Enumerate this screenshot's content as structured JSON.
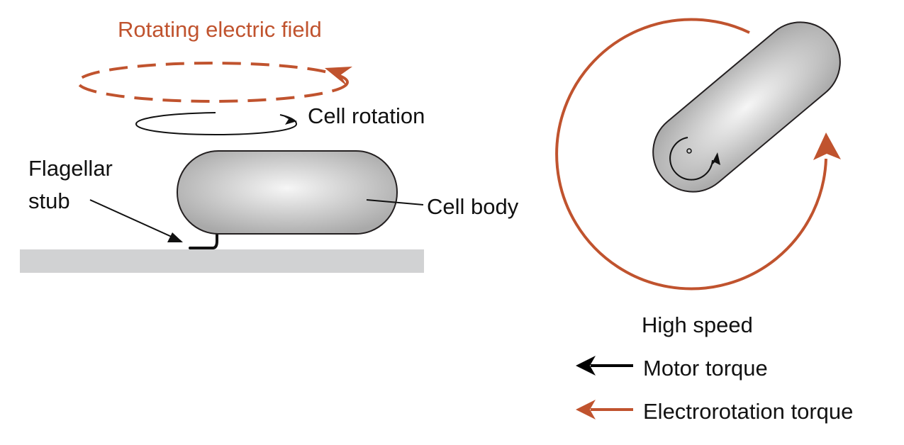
{
  "labels": {
    "field_title": "Rotating electric field",
    "cell_rotation": "Cell rotation",
    "flagellar_stub_line1": "Flagellar",
    "flagellar_stub_line2": "stub",
    "cell_body": "Cell body",
    "high_speed": "High speed"
  },
  "legend": [
    {
      "label": "Motor torque",
      "color": "#000000"
    },
    {
      "label": "Electrorotation torque",
      "color": "#c0532e"
    }
  ],
  "colors": {
    "field": "#c0532e",
    "cell_fill_light": "#f6f6f6",
    "cell_fill_dark": "#a9a9a9",
    "surface": "#d1d2d3",
    "stroke": "#231f20"
  }
}
